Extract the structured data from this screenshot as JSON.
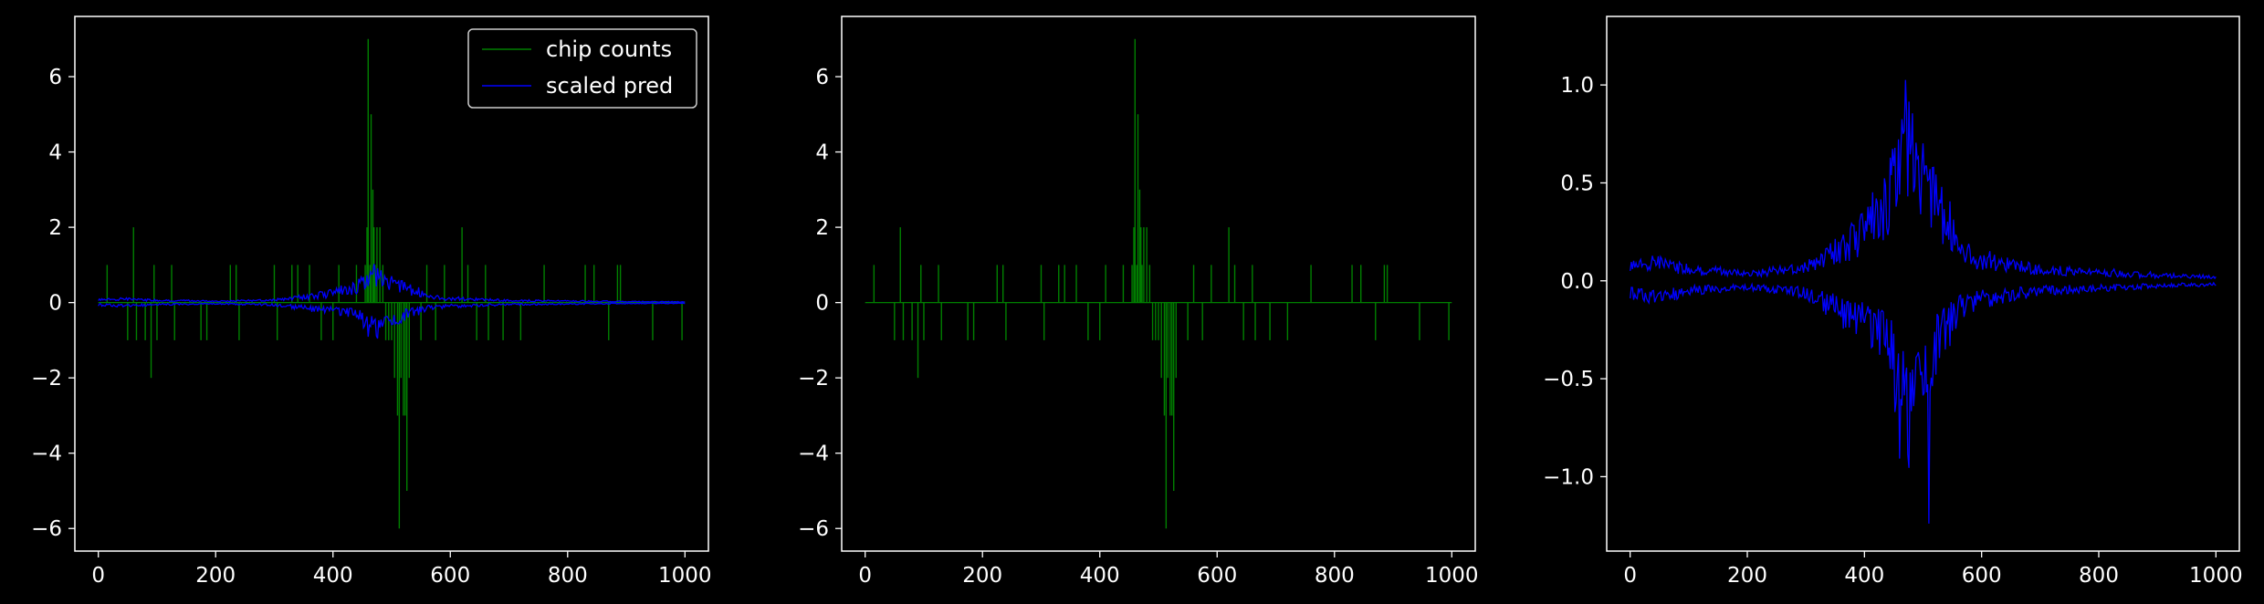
{
  "figure": {
    "background": "#000000",
    "foreground": "#ffffff"
  },
  "chart_data": [
    {
      "type": "line",
      "title": "",
      "xlabel": "",
      "ylabel": "",
      "xlim": [
        -40,
        1040
      ],
      "ylim": [
        -6.6,
        7.6
      ],
      "xticks": [
        "0",
        "200",
        "400",
        "600",
        "800",
        "1000"
      ],
      "xtick_values": [
        0,
        200,
        400,
        600,
        800,
        1000
      ],
      "yticks": [
        "−6",
        "−4",
        "−2",
        "0",
        "2",
        "4",
        "6"
      ],
      "ytick_values": [
        -6,
        -4,
        -2,
        0,
        2,
        4,
        6
      ],
      "grid": false,
      "legend": {
        "placement": "top-right",
        "entries": [
          "chip counts",
          "scaled pred"
        ]
      },
      "series": [
        {
          "name": "chip counts",
          "color": "#008000",
          "kind": "spikes",
          "spikes": [
            [
              15,
              1
            ],
            [
              50,
              -1
            ],
            [
              60,
              2
            ],
            [
              65,
              -1
            ],
            [
              80,
              -1
            ],
            [
              90,
              -2
            ],
            [
              95,
              1
            ],
            [
              100,
              -1
            ],
            [
              125,
              1
            ],
            [
              130,
              -1
            ],
            [
              175,
              -1
            ],
            [
              185,
              -1
            ],
            [
              225,
              1
            ],
            [
              235,
              1
            ],
            [
              240,
              -1
            ],
            [
              300,
              1
            ],
            [
              305,
              -1
            ],
            [
              330,
              1
            ],
            [
              340,
              1
            ],
            [
              360,
              1
            ],
            [
              380,
              -1
            ],
            [
              400,
              -1
            ],
            [
              410,
              1
            ],
            [
              440,
              1
            ],
            [
              455,
              1
            ],
            [
              458,
              2
            ],
            [
              460,
              7
            ],
            [
              463,
              1
            ],
            [
              465,
              5
            ],
            [
              468,
              3
            ],
            [
              470,
              2
            ],
            [
              472,
              1
            ],
            [
              475,
              2
            ],
            [
              480,
              2
            ],
            [
              485,
              1
            ],
            [
              490,
              -1
            ],
            [
              495,
              -1
            ],
            [
              500,
              -1
            ],
            [
              505,
              -2
            ],
            [
              510,
              -3
            ],
            [
              513,
              -6
            ],
            [
              516,
              -2
            ],
            [
              520,
              -3
            ],
            [
              523,
              -3
            ],
            [
              526,
              -5
            ],
            [
              530,
              -2
            ],
            [
              550,
              -1
            ],
            [
              560,
              1
            ],
            [
              575,
              -1
            ],
            [
              590,
              1
            ],
            [
              620,
              2
            ],
            [
              630,
              1
            ],
            [
              645,
              -1
            ],
            [
              660,
              1
            ],
            [
              665,
              -1
            ],
            [
              690,
              -1
            ],
            [
              720,
              -1
            ],
            [
              760,
              1
            ],
            [
              830,
              1
            ],
            [
              845,
              1
            ],
            [
              870,
              -1
            ],
            [
              885,
              1
            ],
            [
              890,
              1
            ],
            [
              945,
              -1
            ],
            [
              995,
              -1
            ]
          ]
        },
        {
          "name": "scaled pred",
          "color": "#0000ff",
          "kind": "band",
          "seed": 7,
          "envelope": [
            [
              0,
              0.1
            ],
            [
              50,
              0.13
            ],
            [
              100,
              0.08
            ],
            [
              200,
              0.05
            ],
            [
              300,
              0.1
            ],
            [
              380,
              0.3
            ],
            [
              440,
              0.5
            ],
            [
              470,
              1.2
            ],
            [
              490,
              0.7
            ],
            [
              520,
              0.6
            ],
            [
              560,
              0.25
            ],
            [
              600,
              0.15
            ],
            [
              700,
              0.08
            ],
            [
              800,
              0.06
            ],
            [
              900,
              0.04
            ],
            [
              1000,
              0.03
            ]
          ]
        }
      ]
    },
    {
      "type": "line",
      "title": "",
      "xlabel": "",
      "ylabel": "",
      "xlim": [
        -40,
        1040
      ],
      "ylim": [
        -6.6,
        7.6
      ],
      "xticks": [
        "0",
        "200",
        "400",
        "600",
        "800",
        "1000"
      ],
      "xtick_values": [
        0,
        200,
        400,
        600,
        800,
        1000
      ],
      "yticks": [
        "−6",
        "−4",
        "−2",
        "0",
        "2",
        "4",
        "6"
      ],
      "ytick_values": [
        -6,
        -4,
        -2,
        0,
        2,
        4,
        6
      ],
      "grid": false,
      "series": [
        {
          "name": "",
          "color": "#008000",
          "kind": "spikes",
          "spikes": [
            [
              15,
              1
            ],
            [
              50,
              -1
            ],
            [
              60,
              2
            ],
            [
              65,
              -1
            ],
            [
              80,
              -1
            ],
            [
              90,
              -2
            ],
            [
              95,
              1
            ],
            [
              100,
              -1
            ],
            [
              125,
              1
            ],
            [
              130,
              -1
            ],
            [
              175,
              -1
            ],
            [
              185,
              -1
            ],
            [
              225,
              1
            ],
            [
              235,
              1
            ],
            [
              240,
              -1
            ],
            [
              300,
              1
            ],
            [
              305,
              -1
            ],
            [
              330,
              1
            ],
            [
              340,
              1
            ],
            [
              360,
              1
            ],
            [
              380,
              -1
            ],
            [
              400,
              -1
            ],
            [
              410,
              1
            ],
            [
              440,
              1
            ],
            [
              455,
              1
            ],
            [
              458,
              2
            ],
            [
              460,
              7
            ],
            [
              463,
              1
            ],
            [
              465,
              5
            ],
            [
              468,
              3
            ],
            [
              470,
              2
            ],
            [
              472,
              1
            ],
            [
              475,
              2
            ],
            [
              480,
              2
            ],
            [
              485,
              1
            ],
            [
              490,
              -1
            ],
            [
              495,
              -1
            ],
            [
              500,
              -1
            ],
            [
              505,
              -2
            ],
            [
              510,
              -3
            ],
            [
              513,
              -6
            ],
            [
              516,
              -2
            ],
            [
              520,
              -3
            ],
            [
              523,
              -3
            ],
            [
              526,
              -5
            ],
            [
              530,
              -2
            ],
            [
              550,
              -1
            ],
            [
              560,
              1
            ],
            [
              575,
              -1
            ],
            [
              590,
              1
            ],
            [
              620,
              2
            ],
            [
              630,
              1
            ],
            [
              645,
              -1
            ],
            [
              660,
              1
            ],
            [
              665,
              -1
            ],
            [
              690,
              -1
            ],
            [
              720,
              -1
            ],
            [
              760,
              1
            ],
            [
              830,
              1
            ],
            [
              845,
              1
            ],
            [
              870,
              -1
            ],
            [
              885,
              1
            ],
            [
              890,
              1
            ],
            [
              945,
              -1
            ],
            [
              995,
              -1
            ]
          ]
        }
      ]
    },
    {
      "type": "line",
      "title": "",
      "xlabel": "",
      "ylabel": "",
      "xlim": [
        -40,
        1040
      ],
      "ylim": [
        -1.38,
        1.35
      ],
      "xticks": [
        "0",
        "200",
        "400",
        "600",
        "800",
        "1000"
      ],
      "xtick_values": [
        0,
        200,
        400,
        600,
        800,
        1000
      ],
      "yticks": [
        "−1.0",
        "−0.5",
        "0.0",
        "0.5",
        "1.0"
      ],
      "ytick_values": [
        -1.0,
        -0.5,
        0.0,
        0.5,
        1.0
      ],
      "grid": false,
      "series": [
        {
          "name": "",
          "color": "#0000ff",
          "kind": "band",
          "seed": 7,
          "envelope": [
            [
              0,
              0.1
            ],
            [
              50,
              0.13
            ],
            [
              100,
              0.08
            ],
            [
              200,
              0.05
            ],
            [
              300,
              0.1
            ],
            [
              380,
              0.3
            ],
            [
              440,
              0.5
            ],
            [
              470,
              1.2
            ],
            [
              490,
              0.7
            ],
            [
              520,
              0.6
            ],
            [
              560,
              0.25
            ],
            [
              600,
              0.15
            ],
            [
              700,
              0.08
            ],
            [
              800,
              0.06
            ],
            [
              900,
              0.04
            ],
            [
              1000,
              0.03
            ]
          ],
          "lower_peak": [
            510,
            -1.24
          ]
        }
      ]
    }
  ]
}
